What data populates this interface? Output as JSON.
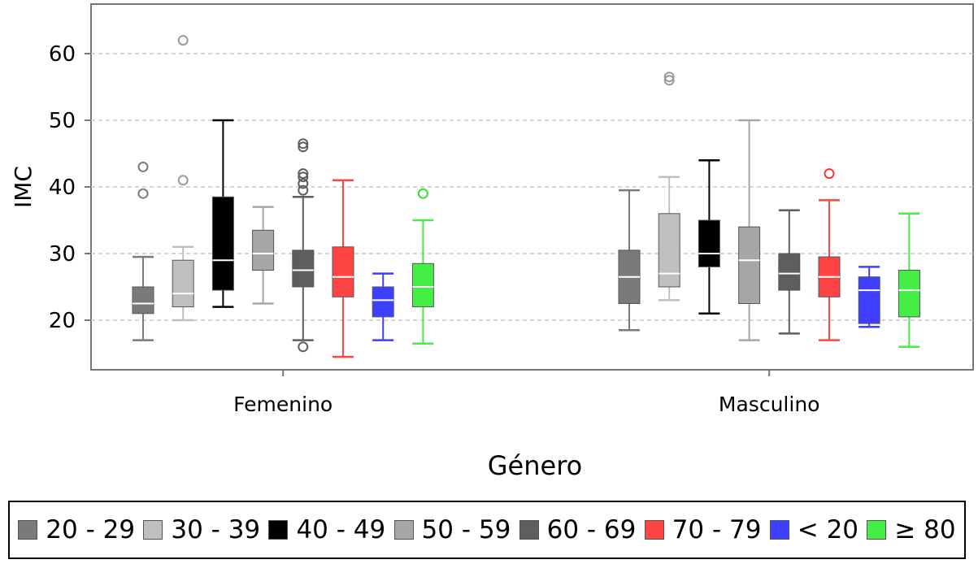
{
  "chart_data": {
    "type": "box",
    "xlabel": "Género",
    "ylabel": "IMC",
    "ylim": [
      12,
      66
    ],
    "yticks": [
      20,
      30,
      40,
      50,
      60
    ],
    "grid": "horizontal-dashed",
    "legend_position": "bottom",
    "categories": [
      "Femenino",
      "Masculino"
    ],
    "series": [
      {
        "name": "20 - 29",
        "color": "#7a7a7a",
        "median_color": "#ffffff",
        "outlier_color": "#7a7a7a",
        "boxes": [
          {
            "whisker_low": 17,
            "q1": 21,
            "median": 22.5,
            "q3": 25,
            "whisker_high": 29.5,
            "outliers": [
              39,
              43
            ]
          },
          {
            "whisker_low": 18.5,
            "q1": 22.5,
            "median": 26.5,
            "q3": 30.5,
            "whisker_high": 39.5,
            "outliers": []
          }
        ]
      },
      {
        "name": "30 - 39",
        "color": "#bfbfbf",
        "median_color": "#ffffff",
        "outlier_color": "#9a9a9a",
        "boxes": [
          {
            "whisker_low": 20,
            "q1": 22,
            "median": 24,
            "q3": 29,
            "whisker_high": 31,
            "outliers": [
              41,
              62
            ]
          },
          {
            "whisker_low": 23,
            "q1": 25,
            "median": 27,
            "q3": 36,
            "whisker_high": 41.5,
            "outliers": [
              56,
              56.5
            ]
          }
        ]
      },
      {
        "name": "40 - 49",
        "color": "#000000",
        "median_color": "#ffffff",
        "outlier_color": "#000000",
        "boxes": [
          {
            "whisker_low": 22,
            "q1": 24.5,
            "median": 29,
            "q3": 38.5,
            "whisker_high": 50,
            "outliers": []
          },
          {
            "whisker_low": 21,
            "q1": 28,
            "median": 30,
            "q3": 35,
            "whisker_high": 44,
            "outliers": []
          }
        ]
      },
      {
        "name": "50 - 59",
        "color": "#a6a6a6",
        "median_color": "#ffffff",
        "outlier_color": "#a6a6a6",
        "boxes": [
          {
            "whisker_low": 22.5,
            "q1": 27.5,
            "median": 30,
            "q3": 33.5,
            "whisker_high": 37,
            "outliers": []
          },
          {
            "whisker_low": 17,
            "q1": 22.5,
            "median": 29,
            "q3": 34,
            "whisker_high": 50,
            "outliers": []
          }
        ]
      },
      {
        "name": "60 - 69",
        "color": "#5e5e5e",
        "median_color": "#ffffff",
        "outlier_color": "#5e5e5e",
        "boxes": [
          {
            "whisker_low": 17,
            "q1": 25,
            "median": 27.5,
            "q3": 30.5,
            "whisker_high": 38.5,
            "outliers": [
              16,
              39.5,
              40.5,
              41.5,
              42,
              46,
              46.5
            ]
          },
          {
            "whisker_low": 18,
            "q1": 24.5,
            "median": 27,
            "q3": 30,
            "whisker_high": 36.5,
            "outliers": []
          }
        ]
      },
      {
        "name": "70 - 79",
        "color": "#ff4444",
        "median_color": "#ffffff",
        "outlier_color": "#ff3333",
        "boxes": [
          {
            "whisker_low": 14.5,
            "q1": 23.5,
            "median": 26.5,
            "q3": 31,
            "whisker_high": 41,
            "outliers": []
          },
          {
            "whisker_low": 17,
            "q1": 23.5,
            "median": 26.5,
            "q3": 29.5,
            "whisker_high": 38,
            "outliers": [
              42
            ]
          }
        ]
      },
      {
        "name": "< 20",
        "color": "#3f3fff",
        "median_color": "#ffffff",
        "outlier_color": "#3f3fff",
        "boxes": [
          {
            "whisker_low": 17,
            "q1": 20.5,
            "median": 23,
            "q3": 25,
            "whisker_high": 27,
            "outliers": []
          },
          {
            "whisker_low": 19,
            "q1": 19.5,
            "median": 24.5,
            "q3": 26.5,
            "whisker_high": 28,
            "outliers": []
          }
        ]
      },
      {
        "name": "≥ 80",
        "color": "#44ee44",
        "median_color": "#ffffff",
        "outlier_color": "#33dd33",
        "boxes": [
          {
            "whisker_low": 16.5,
            "q1": 22,
            "median": 25,
            "q3": 28.5,
            "whisker_high": 35,
            "outliers": [
              39
            ]
          },
          {
            "whisker_low": 16,
            "q1": 20.5,
            "median": 24.5,
            "q3": 27.5,
            "whisker_high": 36,
            "outliers": []
          }
        ]
      }
    ]
  }
}
